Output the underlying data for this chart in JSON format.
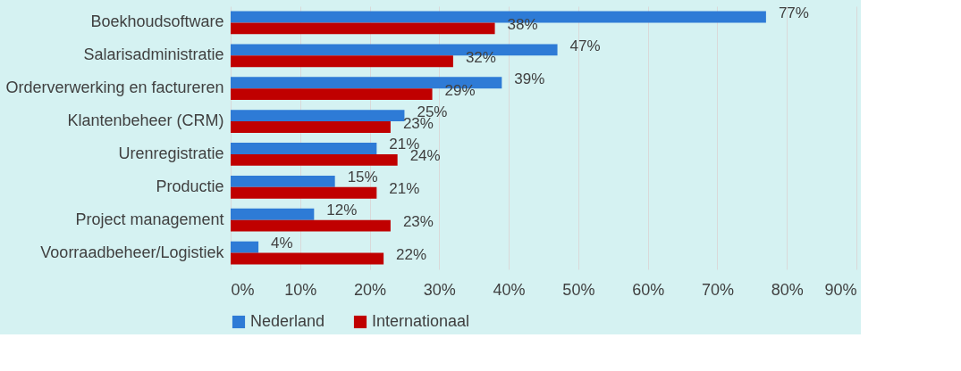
{
  "chart_data": {
    "type": "bar",
    "orientation": "horizontal",
    "categories": [
      "Boekhoudsoftware",
      "Salarisadministratie",
      "Orderverwerking en factureren",
      "Klantenbeheer (CRM)",
      "Urenregistratie",
      "Productie",
      "Project management",
      "Voorraadbeheer/Logistiek"
    ],
    "series": [
      {
        "name": "Nederland",
        "color": "#2e7bd6",
        "values": [
          77,
          47,
          39,
          25,
          21,
          15,
          12,
          4
        ],
        "value_labels": [
          "77%",
          "47%",
          "39%",
          "25%",
          "21%",
          "15%",
          "12%",
          "4%"
        ]
      },
      {
        "name": "Internationaal",
        "color": "#c00000",
        "values": [
          38,
          32,
          29,
          23,
          24,
          21,
          23,
          22
        ],
        "value_labels": [
          "38%",
          "32%",
          "29%",
          "23%",
          "24%",
          "21%",
          "23%",
          "22%"
        ]
      }
    ],
    "xlim": [
      0,
      90
    ],
    "xticks": [
      {
        "value": 0,
        "label": "0%"
      },
      {
        "value": 10,
        "label": "10%"
      },
      {
        "value": 20,
        "label": "20%"
      },
      {
        "value": 30,
        "label": "30%"
      },
      {
        "value": 40,
        "label": "40%"
      },
      {
        "value": 50,
        "label": "50%"
      },
      {
        "value": 60,
        "label": "60%"
      },
      {
        "value": 70,
        "label": "70%"
      },
      {
        "value": 80,
        "label": "80%"
      },
      {
        "value": 90,
        "label": "90%"
      }
    ],
    "grid": "x",
    "legend": "bottom"
  }
}
